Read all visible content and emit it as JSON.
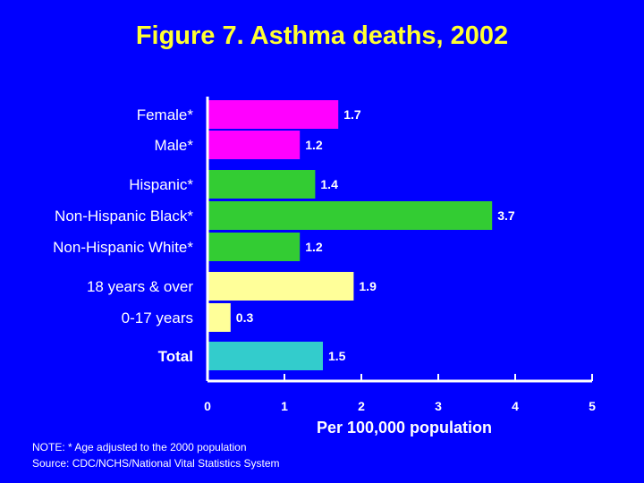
{
  "chart_data": {
    "type": "bar",
    "orientation": "horizontal",
    "title": "Figure 7. Asthma deaths, 2002",
    "xlabel": "Per 100,000 population",
    "ylabel": "",
    "xlim": [
      0,
      5
    ],
    "x_ticks": [
      "0",
      "1",
      "2",
      "3",
      "4",
      "5"
    ],
    "grid": false,
    "categories": [
      "Female*",
      "Male*",
      "Hispanic*",
      "Non-Hispanic Black*",
      "Non-Hispanic White*",
      "18 years & over",
      "0-17 years",
      "Total"
    ],
    "values": [
      1.7,
      1.2,
      1.4,
      3.7,
      1.2,
      1.9,
      0.3,
      1.5
    ],
    "value_labels": [
      "1.7",
      "1.2",
      "1.4",
      "3.7",
      "1.2",
      "1.9",
      "0.3",
      "1.5"
    ],
    "bar_colors": [
      "#FF00FF",
      "#FF00FF",
      "#33CC33",
      "#33CC33",
      "#33CC33",
      "#FFFF99",
      "#FFFF99",
      "#33CCCC"
    ],
    "bold_categories": [
      "Total"
    ]
  },
  "colors": {
    "background": "#0000FF",
    "title": "#FFFF33",
    "text": "#FFFFFF",
    "axis": "#FFFFFF"
  },
  "notes": {
    "note": "NOTE: * Age adjusted to the 2000 population",
    "source": "Source: CDC/NCHS/National Vital Statistics System"
  }
}
